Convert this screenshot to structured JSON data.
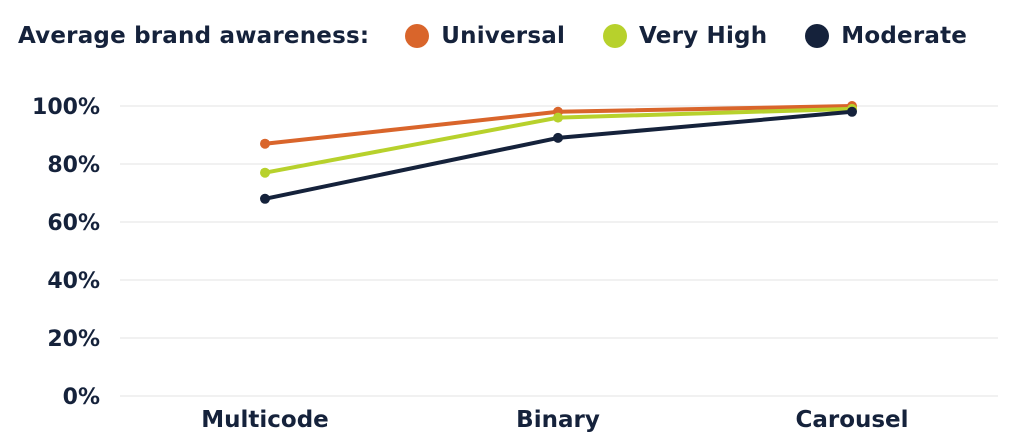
{
  "legend": {
    "title": "Average brand awareness:"
  },
  "chart_data": {
    "type": "line",
    "title": "",
    "xlabel": "",
    "ylabel": "",
    "categories": [
      "Multicode",
      "Binary",
      "Carousel"
    ],
    "ylim": [
      0,
      100
    ],
    "y_ticks": [
      "0%",
      "20%",
      "40%",
      "60%",
      "80%",
      "100%"
    ],
    "grid": true,
    "legend_position": "top",
    "series": [
      {
        "name": "Universal",
        "color": "#d9652b",
        "values": [
          87,
          98,
          100
        ]
      },
      {
        "name": "Very High",
        "color": "#b7d12c",
        "values": [
          77,
          96,
          99
        ]
      },
      {
        "name": "Moderate",
        "color": "#15223b",
        "values": [
          68,
          89,
          98
        ]
      }
    ]
  }
}
